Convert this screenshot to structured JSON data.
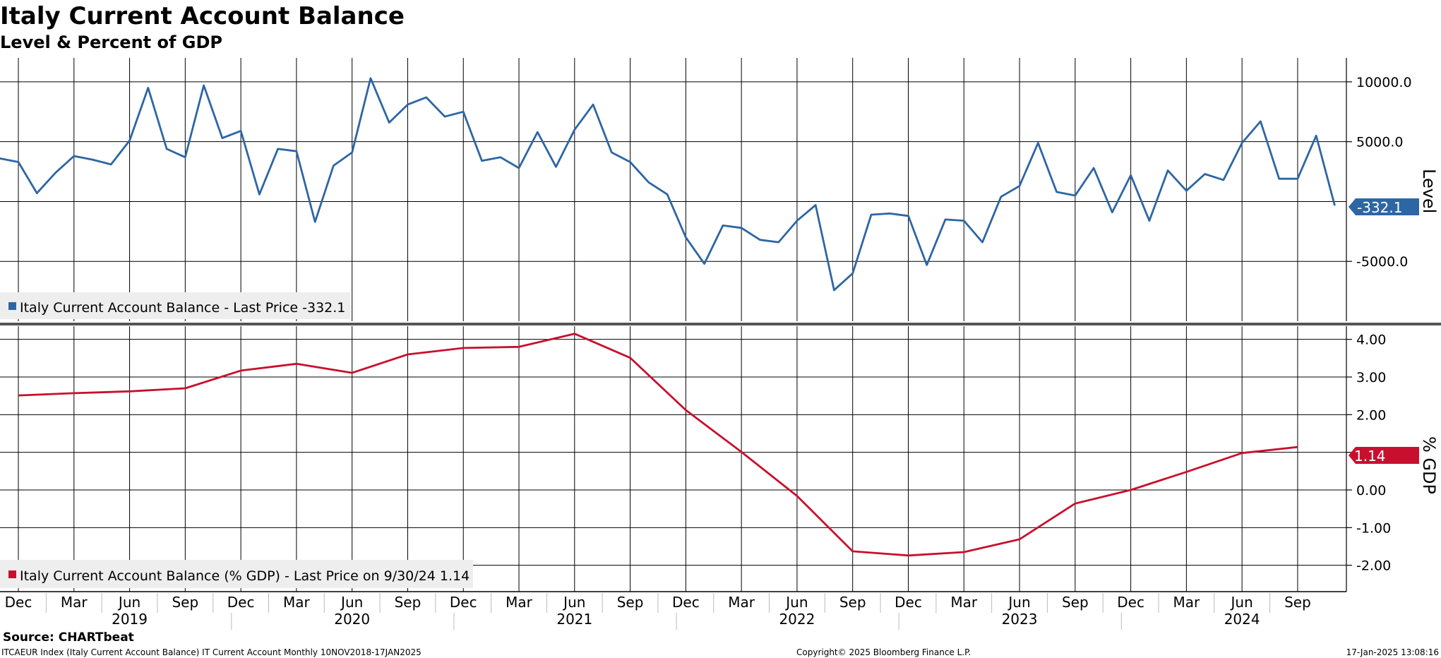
{
  "title": "Italy Current Account Balance",
  "subtitle": "Level & Percent of GDP",
  "source": "Source: CHARTbeat",
  "footer": {
    "left": "ITCAEUR Index (Italy Current Account Balance) IT Current Account  Monthly 10NOV2018-17JAN2025",
    "center": "Copyright© 2025 Bloomberg Finance L.P.",
    "right": "17-Jan-2025 13:08:16"
  },
  "colors": {
    "level": "#2d66a4",
    "gdp": "#c8102e",
    "grid": "#000000",
    "legend_bg": "#eeeeee"
  },
  "x_axis": {
    "month_labels": [
      "Dec",
      "Mar",
      "Jun",
      "Sep",
      "Dec",
      "Mar",
      "Jun",
      "Sep",
      "Dec",
      "Mar",
      "Jun",
      "Sep",
      "Dec",
      "Mar",
      "Jun",
      "Sep",
      "Dec",
      "Mar",
      "Jun",
      "Sep",
      "Dec",
      "Mar",
      "Jun",
      "Sep"
    ],
    "year_labels": [
      "2019",
      "2020",
      "2021",
      "2022",
      "2023",
      "2024"
    ]
  },
  "chart_data": [
    {
      "type": "line",
      "title": "Italy Current Account Balance",
      "ylabel": "Level",
      "legend": "Italy Current Account Balance - Last Price -332.1",
      "last_value_label": "-332.1",
      "ylim": [
        -10000,
        12000
      ],
      "yticks": [
        10000,
        5000,
        -5000
      ],
      "ytick_labels": [
        "10000.0",
        "5000.0",
        "-5000.0"
      ],
      "x_start": "2018-11",
      "series": [
        {
          "name": "Italy Current Account Balance",
          "values": [
            3600,
            3300,
            700,
            2400,
            3800,
            3500,
            3100,
            5100,
            9500,
            4400,
            3700,
            9700,
            5300,
            5900,
            600,
            4400,
            4200,
            -1700,
            3000,
            4100,
            10300,
            6600,
            8100,
            8700,
            7100,
            7500,
            3400,
            3700,
            2800,
            5800,
            2900,
            6000,
            8100,
            4100,
            3300,
            1600,
            600,
            -3000,
            -5200,
            -2000,
            -2200,
            -3200,
            -3400,
            -1600,
            -300,
            -7400,
            -6000,
            -1100,
            -1000,
            -1200,
            -5300,
            -1500,
            -1600,
            -3400,
            400,
            1300,
            4900,
            800,
            500,
            2800,
            -900,
            2200,
            -1600,
            2600,
            900,
            2300,
            1800,
            4900,
            6700,
            1900,
            1900,
            5500,
            -332.1
          ]
        }
      ]
    },
    {
      "type": "line",
      "title": "Italy Current Account Balance (% GDP)",
      "ylabel": "% GDP",
      "legend": "Italy Current Account Balance (% GDP) - Last Price on 9/30/24 1.14",
      "last_value_label": "1.14",
      "ylim": [
        -2.7,
        4.35
      ],
      "yticks": [
        4,
        3,
        2,
        1,
        0,
        -1,
        -2
      ],
      "ytick_labels": [
        "4.00",
        "3.00",
        "2.00",
        "1.00",
        "0.00",
        "-1.00",
        "-2.00"
      ],
      "x": [
        "2018-12",
        "2019-03",
        "2019-06",
        "2019-09",
        "2019-12",
        "2020-03",
        "2020-06",
        "2020-09",
        "2020-12",
        "2021-03",
        "2021-06",
        "2021-09",
        "2021-12",
        "2022-03",
        "2022-06",
        "2022-09",
        "2022-12",
        "2023-03",
        "2023-06",
        "2023-09",
        "2023-12",
        "2024-03",
        "2024-06",
        "2024-09"
      ],
      "series": [
        {
          "name": "Italy Current Account Balance (% GDP)",
          "values": [
            2.51,
            2.57,
            2.62,
            2.7,
            3.17,
            3.35,
            3.11,
            3.6,
            3.77,
            3.8,
            4.15,
            3.51,
            2.12,
            1.01,
            -0.16,
            -1.63,
            -1.74,
            -1.65,
            -1.31,
            -0.36,
            0.0,
            0.48,
            0.98,
            1.14
          ]
        }
      ]
    }
  ]
}
